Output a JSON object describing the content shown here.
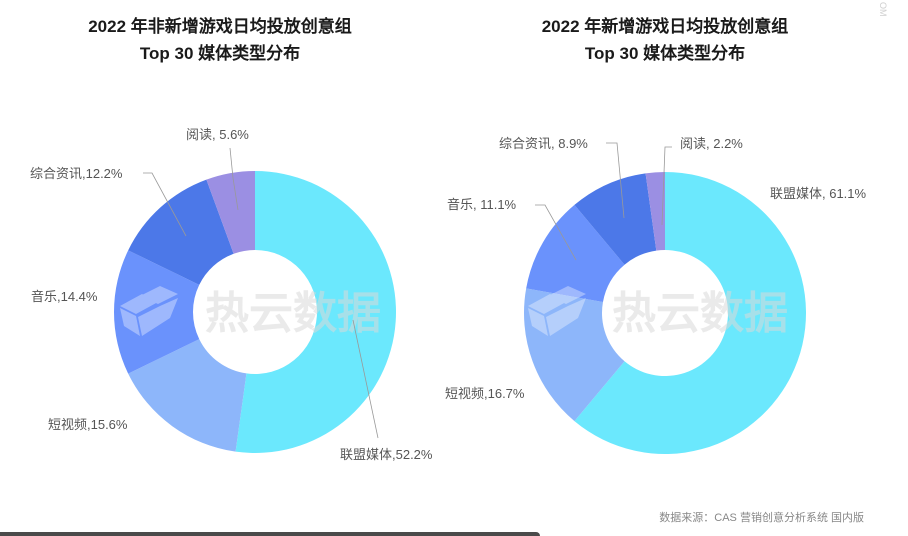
{
  "page": {
    "source_note": "数据来源：CAS 营销创意分析系统 国内版",
    "edge_mark": "OM",
    "watermark": "热云数据"
  },
  "colors": {
    "联盟媒体": "#6BE8FD",
    "短视频": "#8DB6FA",
    "音乐": "#6A92FC",
    "综合资讯": "#4C78E8",
    "阅读": "#9B8FE3",
    "leader_line": "#999999",
    "label_text": "#555555"
  },
  "chart_data": [
    {
      "type": "pie",
      "variant": "donut",
      "title_line1": "2022 年非新增游戏日均投放创意组",
      "title_line2": "Top 30 媒体类型分布",
      "categories": [
        "联盟媒体",
        "短视频",
        "音乐",
        "综合资讯",
        "阅读"
      ],
      "values": [
        52.2,
        15.6,
        14.4,
        12.2,
        5.6
      ],
      "unit": "%",
      "labels": [
        "联盟媒体,52.2%",
        "短视频,15.6%",
        "音乐,14.4%",
        "综合资讯,12.2%",
        "阅读, 5.6%"
      ],
      "start_angle": "12 o'clock, clockwise",
      "legend": "none (outside labels with leader lines)"
    },
    {
      "type": "pie",
      "variant": "donut",
      "title_line1": "2022 年新增游戏日均投放创意组",
      "title_line2": "Top 30 媒体类型分布",
      "categories": [
        "联盟媒体",
        "短视频",
        "音乐",
        "综合资讯",
        "阅读"
      ],
      "values": [
        61.1,
        16.7,
        11.1,
        8.9,
        2.2
      ],
      "unit": "%",
      "labels": [
        "联盟媒体, 61.1%",
        "短视频,16.7%",
        "音乐, 11.1%",
        "综合资讯, 8.9%",
        "阅读, 2.2%"
      ],
      "start_angle": "12 o'clock, clockwise",
      "legend": "none (outside labels with leader lines)"
    }
  ]
}
